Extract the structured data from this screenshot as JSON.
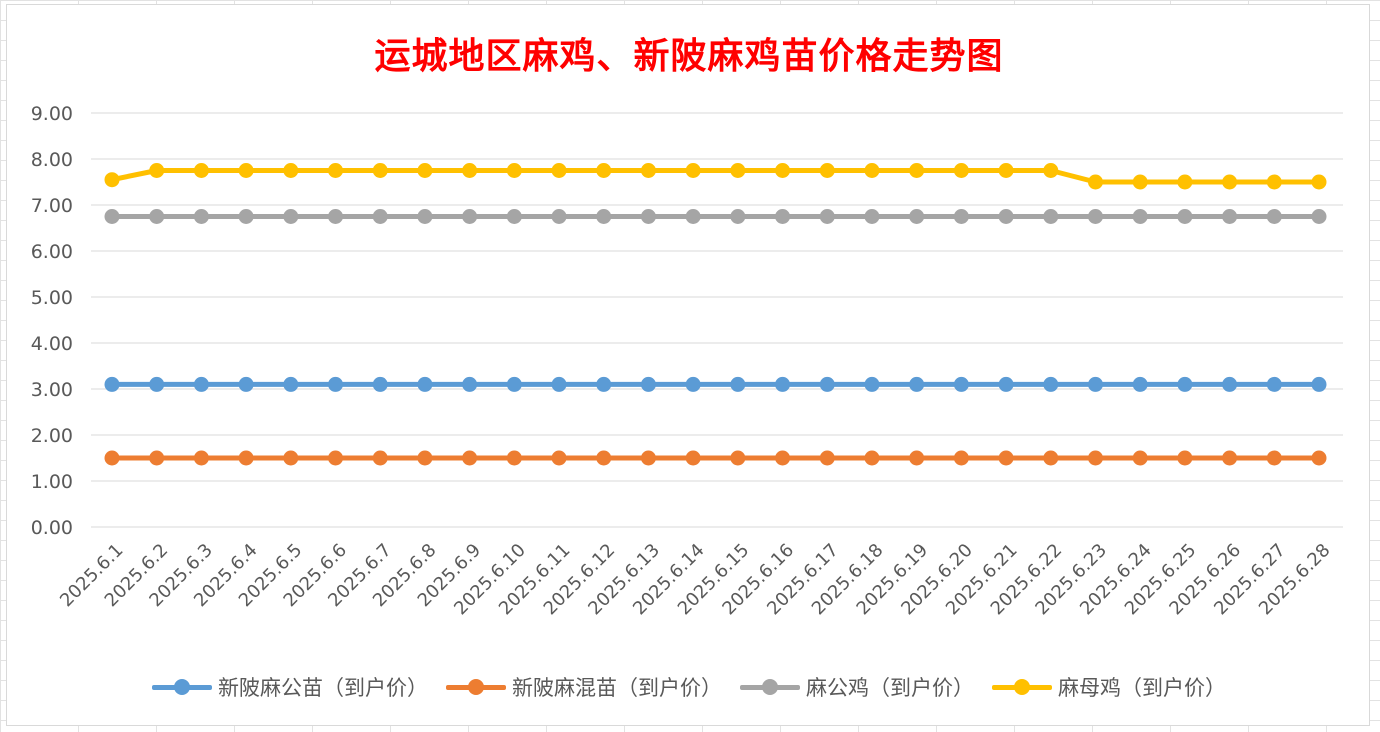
{
  "chart_data": {
    "type": "line",
    "title": "运城地区麻鸡、新陂麻鸡苗价格走势图",
    "xlabel": "",
    "ylabel": "",
    "ylim": [
      0,
      9
    ],
    "yticks": [
      "0.00",
      "1.00",
      "2.00",
      "3.00",
      "4.00",
      "5.00",
      "6.00",
      "7.00",
      "8.00",
      "9.00"
    ],
    "grid": true,
    "legend_position": "bottom",
    "categories": [
      "2025.6.1",
      "2025.6.2",
      "2025.6.3",
      "2025.6.4",
      "2025.6.5",
      "2025.6.6",
      "2025.6.7",
      "2025.6.8",
      "2025.6.9",
      "2025.6.10",
      "2025.6.11",
      "2025.6.12",
      "2025.6.13",
      "2025.6.14",
      "2025.6.15",
      "2025.6.16",
      "2025.6.17",
      "2025.6.18",
      "2025.6.19",
      "2025.6.20",
      "2025.6.21",
      "2025.6.22",
      "2025.6.23",
      "2025.6.24",
      "2025.6.25",
      "2025.6.26",
      "2025.6.27",
      "2025.6.28"
    ],
    "series": [
      {
        "name": "新陂麻公苗（到户价）",
        "color": "#5b9bd5",
        "values": [
          3.1,
          3.1,
          3.1,
          3.1,
          3.1,
          3.1,
          3.1,
          3.1,
          3.1,
          3.1,
          3.1,
          3.1,
          3.1,
          3.1,
          3.1,
          3.1,
          3.1,
          3.1,
          3.1,
          3.1,
          3.1,
          3.1,
          3.1,
          3.1,
          3.1,
          3.1,
          3.1,
          3.1
        ]
      },
      {
        "name": "新陂麻混苗（到户价）",
        "color": "#ed7d31",
        "values": [
          1.5,
          1.5,
          1.5,
          1.5,
          1.5,
          1.5,
          1.5,
          1.5,
          1.5,
          1.5,
          1.5,
          1.5,
          1.5,
          1.5,
          1.5,
          1.5,
          1.5,
          1.5,
          1.5,
          1.5,
          1.5,
          1.5,
          1.5,
          1.5,
          1.5,
          1.5,
          1.5,
          1.5
        ]
      },
      {
        "name": "麻公鸡（到户价）",
        "color": "#a5a5a5",
        "values": [
          6.75,
          6.75,
          6.75,
          6.75,
          6.75,
          6.75,
          6.75,
          6.75,
          6.75,
          6.75,
          6.75,
          6.75,
          6.75,
          6.75,
          6.75,
          6.75,
          6.75,
          6.75,
          6.75,
          6.75,
          6.75,
          6.75,
          6.75,
          6.75,
          6.75,
          6.75,
          6.75,
          6.75
        ]
      },
      {
        "name": "麻母鸡（到户价）",
        "color": "#ffc000",
        "values": [
          7.55,
          7.75,
          7.75,
          7.75,
          7.75,
          7.75,
          7.75,
          7.75,
          7.75,
          7.75,
          7.75,
          7.75,
          7.75,
          7.75,
          7.75,
          7.75,
          7.75,
          7.75,
          7.75,
          7.75,
          7.75,
          7.75,
          7.5,
          7.5,
          7.5,
          7.5,
          7.5,
          7.5
        ]
      }
    ]
  }
}
